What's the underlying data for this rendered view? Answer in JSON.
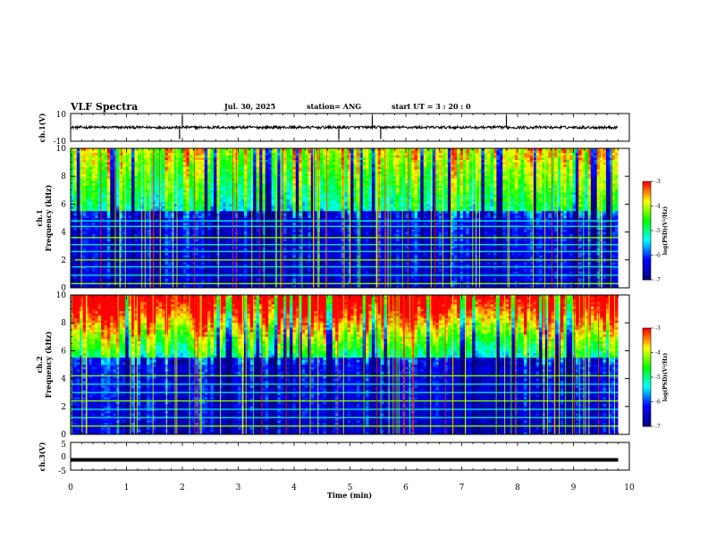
{
  "header": {
    "title": "VLF Spectra",
    "date": "Jul. 30, 2025",
    "station": "station= ANG",
    "start_ut": "start UT =  3 : 20 : 0"
  },
  "chart_data": [
    {
      "type": "line",
      "name": "ch1-waveform",
      "ylabel": "ch.1(V)",
      "ylim": [
        -10,
        10
      ],
      "yticks": [
        "10",
        "-10"
      ],
      "xlim": [
        0,
        10
      ],
      "series": [
        {
          "name": "ch.1",
          "baseline": 0,
          "noise_amplitude": 1,
          "spike_times_min": [
            1.95,
            2.0,
            4.8,
            5.4,
            5.55,
            7.8
          ]
        }
      ]
    },
    {
      "type": "heatmap",
      "name": "ch1-spectrogram",
      "ylabel": "ch.1\nFrequency (kHz)",
      "ylabel_top": "ch.1",
      "ylabel_bottom": "Frequency (kHz)",
      "ylim": [
        0,
        10
      ],
      "yticks": [
        "0",
        "2",
        "4",
        "6",
        "8",
        "10"
      ],
      "xlim": [
        0,
        9.8
      ],
      "colorbar": {
        "label": "log(PSD)(V²/Hz)",
        "range": [
          -7,
          -3
        ],
        "ticks": [
          "-3",
          "-4",
          "-5",
          "-6",
          "-7"
        ]
      },
      "description_bands_khz": [
        0.3,
        0.9,
        1.5,
        2.0,
        2.6,
        3.1,
        3.6,
        4.4,
        4.8
      ]
    },
    {
      "type": "heatmap",
      "name": "ch2-spectrogram",
      "ylabel_top": "ch.2",
      "ylabel_bottom": "Frequency (kHz)",
      "ylim": [
        0,
        10
      ],
      "yticks": [
        "0",
        "2",
        "4",
        "6",
        "8",
        "10"
      ],
      "xlim": [
        0,
        9.8
      ],
      "colorbar": {
        "label": "log(PSD)(V²/Hz)",
        "range": [
          -7,
          -3
        ],
        "ticks": [
          "-3",
          "-4",
          "-5",
          "-6",
          "-7"
        ]
      },
      "description_bands_khz": [
        0.6,
        1.2,
        1.8,
        2.4,
        3.0,
        3.6,
        4.2
      ]
    },
    {
      "type": "line",
      "name": "ch3-waveform",
      "ylabel": "ch.3(V)",
      "ylim": [
        -5,
        5
      ],
      "yticks": [
        "5",
        "0",
        "-5"
      ],
      "xlim": [
        0,
        10
      ],
      "series": [
        {
          "name": "ch.3",
          "constant_value": -1.3
        }
      ]
    }
  ],
  "x_axis": {
    "label": "Time (min)",
    "ticks": [
      "0",
      "1",
      "2",
      "3",
      "4",
      "5",
      "6",
      "7",
      "8",
      "9",
      "10"
    ],
    "range": [
      0,
      10
    ]
  },
  "colors": {
    "cmap": [
      "#00007f",
      "#0000ff",
      "#00ffff",
      "#00ff00",
      "#ffff00",
      "#ff0000"
    ]
  }
}
